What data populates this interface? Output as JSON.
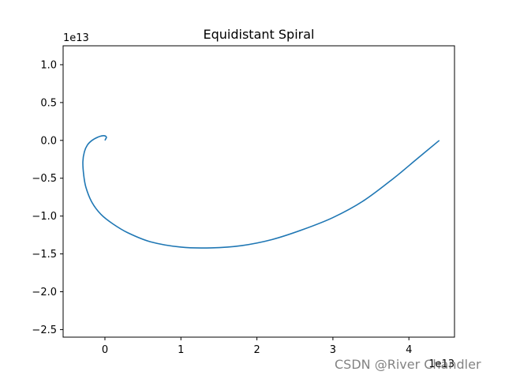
{
  "chart_data": {
    "type": "line",
    "title": "Equidistant Spiral",
    "xlabel": "",
    "ylabel": "",
    "x_offset_text": "1e13",
    "y_offset_text": "1e13",
    "xlim": [
      -0.55,
      4.6
    ],
    "ylim": [
      -2.6,
      1.25
    ],
    "x_ticks": [
      0,
      1,
      2,
      3,
      4
    ],
    "x_tick_labels": [
      "0",
      "1",
      "2",
      "3",
      "4"
    ],
    "y_ticks": [
      1.0,
      0.5,
      0.0,
      -0.5,
      -1.0,
      -1.5,
      -2.0,
      -2.5
    ],
    "y_tick_labels": [
      "1.0",
      "0.5",
      "0.0",
      "−0.5",
      "−1.0",
      "−1.5",
      "−2.0",
      "−2.5"
    ],
    "grid": false,
    "series": [
      {
        "color": "#1f77b4",
        "x": [
          0.0,
          0.01,
          0.02,
          0.0,
          -0.04,
          -0.1,
          -0.17,
          -0.23,
          -0.27,
          -0.29,
          -0.28,
          -0.25,
          -0.17,
          -0.05,
          0.1,
          0.3,
          0.6,
          1.0,
          1.4,
          1.8,
          2.2,
          2.6,
          3.0,
          3.4,
          3.8,
          4.1,
          4.4
        ],
        "y": [
          0.0,
          0.02,
          0.04,
          0.06,
          0.06,
          0.04,
          0.0,
          -0.06,
          -0.15,
          -0.28,
          -0.45,
          -0.62,
          -0.82,
          -0.98,
          -1.1,
          -1.22,
          -1.34,
          -1.41,
          -1.42,
          -1.39,
          -1.31,
          -1.18,
          -1.02,
          -0.8,
          -0.5,
          -0.25,
          0.0
        ]
      }
    ]
  },
  "watermark": "CSDN @River Chandler"
}
